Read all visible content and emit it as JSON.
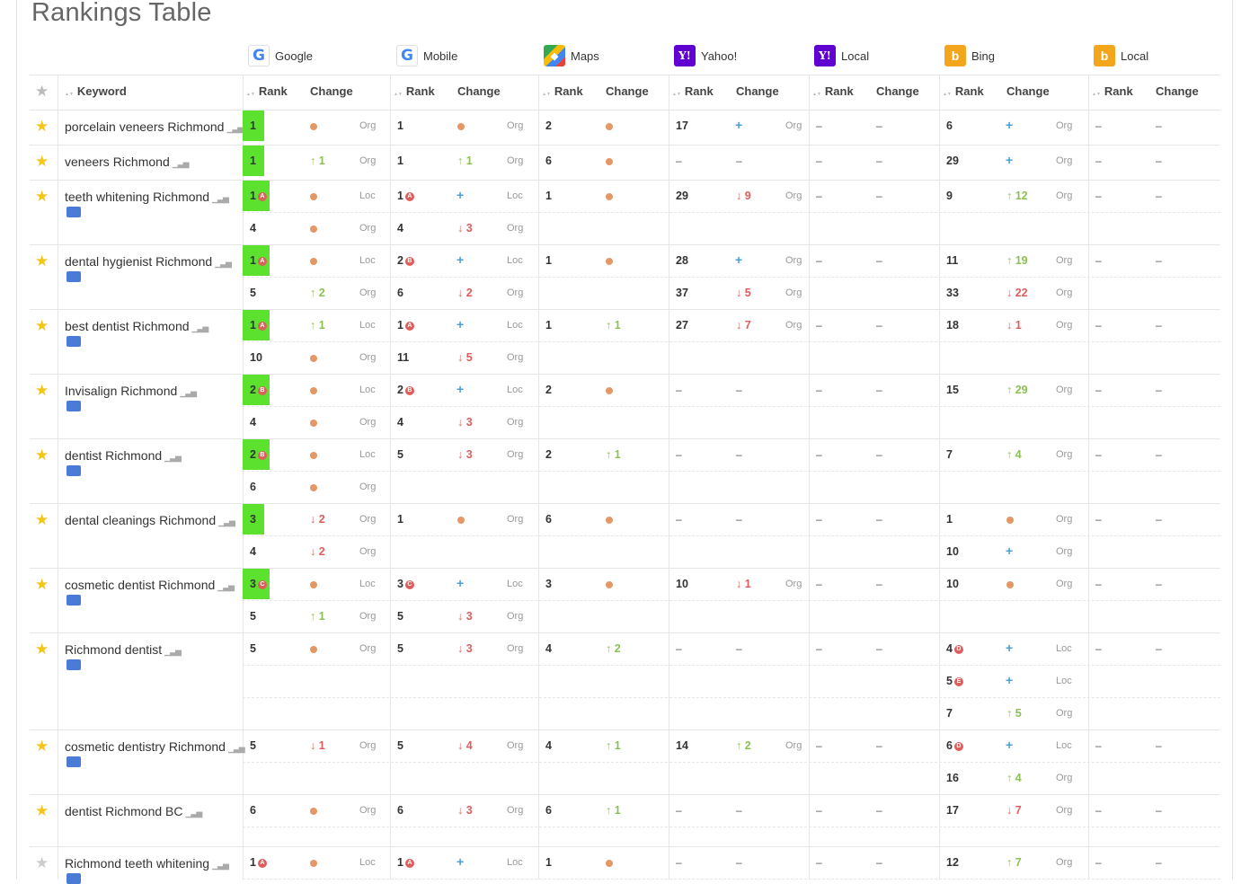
{
  "title": "Rankings Table",
  "engines": [
    {
      "name": "Google",
      "logo": "G"
    },
    {
      "name": "Mobile",
      "logo": "G"
    },
    {
      "name": "Maps",
      "logo": "◆"
    },
    {
      "name": "Yahoo!",
      "logo": "Y!"
    },
    {
      "name": "Local",
      "logo": "Y!"
    },
    {
      "name": "Bing",
      "logo": "b"
    },
    {
      "name": "Local",
      "logo": "b"
    }
  ],
  "columns": {
    "keyword": "Keyword",
    "rank": "Rank",
    "change": "Change"
  },
  "rows": [
    {
      "keyword": "porcelain veneers Richmond",
      "starred": true,
      "gmb": false,
      "google": [
        {
          "rank": "1",
          "green": true,
          "badge": "",
          "chg": "dot",
          "chgv": "",
          "type": "Org"
        }
      ],
      "mobile": [
        {
          "rank": "1",
          "badge": "",
          "chg": "dot",
          "chgv": "",
          "type": "Org"
        }
      ],
      "maps": [
        {
          "rank": "2",
          "chg": "dot",
          "chgv": ""
        }
      ],
      "yahoo": [
        {
          "rank": "17",
          "chg": "plus",
          "chgv": "",
          "type": "Org"
        }
      ],
      "bing": [
        {
          "rank": "6",
          "badge": "",
          "chg": "plus",
          "chgv": "",
          "type": "Org"
        }
      ]
    },
    {
      "keyword": "veneers Richmond",
      "starred": true,
      "gmb": false,
      "google": [
        {
          "rank": "1",
          "green": true,
          "badge": "",
          "chg": "up",
          "chgv": "1",
          "type": "Org"
        }
      ],
      "mobile": [
        {
          "rank": "1",
          "badge": "",
          "chg": "up",
          "chgv": "1",
          "type": "Org"
        }
      ],
      "maps": [
        {
          "rank": "6",
          "chg": "dot",
          "chgv": ""
        }
      ],
      "yahoo": [],
      "bing": [
        {
          "rank": "29",
          "badge": "",
          "chg": "plus",
          "chgv": "",
          "type": "Org"
        }
      ]
    },
    {
      "keyword": "teeth whitening Richmond",
      "starred": true,
      "gmb": true,
      "google": [
        {
          "rank": "1",
          "green": true,
          "badge": "A",
          "chg": "dot",
          "chgv": "",
          "type": "Loc"
        },
        {
          "rank": "4",
          "badge": "",
          "chg": "dot",
          "chgv": "",
          "type": "Org"
        }
      ],
      "mobile": [
        {
          "rank": "1",
          "badge": "A",
          "chg": "plus",
          "chgv": "",
          "type": "Loc"
        },
        {
          "rank": "4",
          "badge": "",
          "chg": "down",
          "chgv": "3",
          "type": "Org"
        }
      ],
      "maps": [
        {
          "rank": "1",
          "chg": "dot",
          "chgv": ""
        }
      ],
      "yahoo": [
        {
          "rank": "29",
          "chg": "down",
          "chgv": "9",
          "type": "Org"
        }
      ],
      "bing": [
        {
          "rank": "9",
          "badge": "",
          "chg": "up",
          "chgv": "12",
          "type": "Org"
        }
      ]
    },
    {
      "keyword": "dental hygienist Richmond",
      "starred": true,
      "gmb": true,
      "google": [
        {
          "rank": "1",
          "green": true,
          "badge": "A",
          "chg": "dot",
          "chgv": "",
          "type": "Loc"
        },
        {
          "rank": "5",
          "badge": "",
          "chg": "up",
          "chgv": "2",
          "type": "Org"
        }
      ],
      "mobile": [
        {
          "rank": "2",
          "badge": "B",
          "chg": "plus",
          "chgv": "",
          "type": "Loc"
        },
        {
          "rank": "6",
          "badge": "",
          "chg": "down",
          "chgv": "2",
          "type": "Org"
        }
      ],
      "maps": [
        {
          "rank": "1",
          "chg": "dot",
          "chgv": ""
        }
      ],
      "yahoo": [
        {
          "rank": "28",
          "chg": "plus",
          "chgv": "",
          "type": "Org"
        },
        {
          "rank": "37",
          "chg": "down",
          "chgv": "5",
          "type": "Org"
        }
      ],
      "bing": [
        {
          "rank": "11",
          "badge": "",
          "chg": "up",
          "chgv": "19",
          "type": "Org"
        },
        {
          "rank": "33",
          "badge": "",
          "chg": "down",
          "chgv": "22",
          "type": "Org"
        }
      ]
    },
    {
      "keyword": "best dentist Richmond",
      "starred": true,
      "gmb": true,
      "google": [
        {
          "rank": "1",
          "green": true,
          "badge": "A",
          "chg": "up",
          "chgv": "1",
          "type": "Loc"
        },
        {
          "rank": "10",
          "badge": "",
          "chg": "dot",
          "chgv": "",
          "type": "Org"
        }
      ],
      "mobile": [
        {
          "rank": "1",
          "badge": "A",
          "chg": "plus",
          "chgv": "",
          "type": "Loc"
        },
        {
          "rank": "11",
          "badge": "",
          "chg": "down",
          "chgv": "5",
          "type": "Org"
        }
      ],
      "maps": [
        {
          "rank": "1",
          "chg": "up",
          "chgv": "1"
        }
      ],
      "yahoo": [
        {
          "rank": "27",
          "chg": "down",
          "chgv": "7",
          "type": "Org"
        }
      ],
      "bing": [
        {
          "rank": "18",
          "badge": "",
          "chg": "down",
          "chgv": "1",
          "type": "Org"
        }
      ]
    },
    {
      "keyword": "Invisalign Richmond",
      "starred": true,
      "gmb": true,
      "google": [
        {
          "rank": "2",
          "green": true,
          "badge": "B",
          "chg": "dot",
          "chgv": "",
          "type": "Loc"
        },
        {
          "rank": "4",
          "badge": "",
          "chg": "dot",
          "chgv": "",
          "type": "Org"
        }
      ],
      "mobile": [
        {
          "rank": "2",
          "badge": "B",
          "chg": "plus",
          "chgv": "",
          "type": "Loc"
        },
        {
          "rank": "4",
          "badge": "",
          "chg": "down",
          "chgv": "3",
          "type": "Org"
        }
      ],
      "maps": [
        {
          "rank": "2",
          "chg": "dot",
          "chgv": ""
        }
      ],
      "yahoo": [],
      "bing": [
        {
          "rank": "15",
          "badge": "",
          "chg": "up",
          "chgv": "29",
          "type": "Org"
        }
      ]
    },
    {
      "keyword": "dentist Richmond",
      "starred": true,
      "gmb": true,
      "google": [
        {
          "rank": "2",
          "green": true,
          "badge": "B",
          "chg": "dot",
          "chgv": "",
          "type": "Loc"
        },
        {
          "rank": "6",
          "badge": "",
          "chg": "dot",
          "chgv": "",
          "type": "Org"
        }
      ],
      "mobile": [
        {
          "rank": "5",
          "badge": "",
          "chg": "down",
          "chgv": "3",
          "type": "Org"
        }
      ],
      "maps": [
        {
          "rank": "2",
          "chg": "up",
          "chgv": "1"
        }
      ],
      "yahoo": [],
      "bing": [
        {
          "rank": "7",
          "badge": "",
          "chg": "up",
          "chgv": "4",
          "type": "Org"
        }
      ]
    },
    {
      "keyword": "dental cleanings Richmond",
      "starred": true,
      "gmb": false,
      "google": [
        {
          "rank": "3",
          "green": true,
          "badge": "",
          "chg": "down",
          "chgv": "2",
          "type": "Org"
        },
        {
          "rank": "4",
          "badge": "",
          "chg": "down",
          "chgv": "2",
          "type": "Org"
        }
      ],
      "mobile": [
        {
          "rank": "1",
          "badge": "",
          "chg": "dot",
          "chgv": "",
          "type": "Org"
        }
      ],
      "maps": [
        {
          "rank": "6",
          "chg": "dot",
          "chgv": ""
        }
      ],
      "yahoo": [],
      "bing": [
        {
          "rank": "1",
          "badge": "",
          "chg": "dot",
          "chgv": "",
          "type": "Org"
        },
        {
          "rank": "10",
          "badge": "",
          "chg": "plus",
          "chgv": "",
          "type": "Org"
        }
      ]
    },
    {
      "keyword": "cosmetic dentist Richmond",
      "starred": true,
      "gmb": true,
      "google": [
        {
          "rank": "3",
          "green": true,
          "badge": "C",
          "chg": "dot",
          "chgv": "",
          "type": "Loc"
        },
        {
          "rank": "5",
          "badge": "",
          "chg": "up",
          "chgv": "1",
          "type": "Org"
        }
      ],
      "mobile": [
        {
          "rank": "3",
          "badge": "C",
          "chg": "plus",
          "chgv": "",
          "type": "Loc"
        },
        {
          "rank": "5",
          "badge": "",
          "chg": "down",
          "chgv": "3",
          "type": "Org"
        }
      ],
      "maps": [
        {
          "rank": "3",
          "chg": "dot",
          "chgv": ""
        }
      ],
      "yahoo": [
        {
          "rank": "10",
          "chg": "down",
          "chgv": "1",
          "type": "Org"
        }
      ],
      "bing": [
        {
          "rank": "10",
          "badge": "",
          "chg": "dot",
          "chgv": "",
          "type": "Org"
        }
      ]
    },
    {
      "keyword": "Richmond dentist",
      "starred": true,
      "gmb": true,
      "google": [
        {
          "rank": "5",
          "badge": "",
          "chg": "dot",
          "chgv": "",
          "type": "Org"
        }
      ],
      "mobile": [
        {
          "rank": "5",
          "badge": "",
          "chg": "down",
          "chgv": "3",
          "type": "Org"
        }
      ],
      "maps": [
        {
          "rank": "4",
          "chg": "up",
          "chgv": "2"
        }
      ],
      "yahoo": [],
      "bing": [
        {
          "rank": "4",
          "badge": "D",
          "chg": "plus",
          "chgv": "",
          "type": "Loc"
        },
        {
          "rank": "5",
          "badge": "E",
          "chg": "plus",
          "chgv": "",
          "type": "Loc"
        },
        {
          "rank": "7",
          "badge": "",
          "chg": "up",
          "chgv": "5",
          "type": "Org"
        }
      ]
    },
    {
      "keyword": "cosmetic dentistry Richmond",
      "starred": true,
      "gmb": true,
      "google": [
        {
          "rank": "5",
          "badge": "",
          "chg": "down",
          "chgv": "1",
          "type": "Org"
        }
      ],
      "mobile": [
        {
          "rank": "5",
          "badge": "",
          "chg": "down",
          "chgv": "4",
          "type": "Org"
        }
      ],
      "maps": [
        {
          "rank": "4",
          "chg": "up",
          "chgv": "1"
        }
      ],
      "yahoo": [
        {
          "rank": "14",
          "chg": "up",
          "chgv": "2",
          "type": "Org"
        }
      ],
      "bing": [
        {
          "rank": "6",
          "badge": "D",
          "chg": "plus",
          "chgv": "",
          "type": "Loc"
        },
        {
          "rank": "16",
          "badge": "",
          "chg": "up",
          "chgv": "4",
          "type": "Org"
        }
      ]
    },
    {
      "keyword": "dentist Richmond BC",
      "starred": true,
      "gmb": false,
      "google": [
        {
          "rank": "6",
          "badge": "",
          "chg": "dot",
          "chgv": "",
          "type": "Org"
        }
      ],
      "mobile": [
        {
          "rank": "6",
          "badge": "",
          "chg": "down",
          "chgv": "3",
          "type": "Org"
        }
      ],
      "maps": [
        {
          "rank": "6",
          "chg": "up",
          "chgv": "1"
        }
      ],
      "yahoo": [],
      "bing": [
        {
          "rank": "17",
          "badge": "",
          "chg": "down",
          "chgv": "7",
          "type": "Org"
        }
      ]
    },
    {
      "keyword": "Richmond teeth whitening",
      "starred": false,
      "gmb": true,
      "google": [
        {
          "rank": "1",
          "badge": "A",
          "chg": "dot",
          "chgv": "",
          "type": "Loc"
        }
      ],
      "mobile": [
        {
          "rank": "1",
          "badge": "A",
          "chg": "plus",
          "chgv": "",
          "type": "Loc"
        }
      ],
      "maps": [
        {
          "rank": "1",
          "chg": "dot",
          "chgv": ""
        }
      ],
      "yahoo": [],
      "bing": [
        {
          "rank": "12",
          "badge": "",
          "chg": "up",
          "chgv": "7",
          "type": "Org"
        }
      ]
    }
  ],
  "empty_value": "–",
  "icons": {
    "star": "star-icon",
    "bars": "bar-chart-icon",
    "gmb": "google-my-business-icon",
    "sort": "sort-icon"
  },
  "colors": {
    "rank_highlight": "#5ce22e",
    "up": "#8cc152",
    "down": "#e05d5d",
    "new": "#4a9fd5",
    "same": "#e59866",
    "star": "#f5c518"
  }
}
